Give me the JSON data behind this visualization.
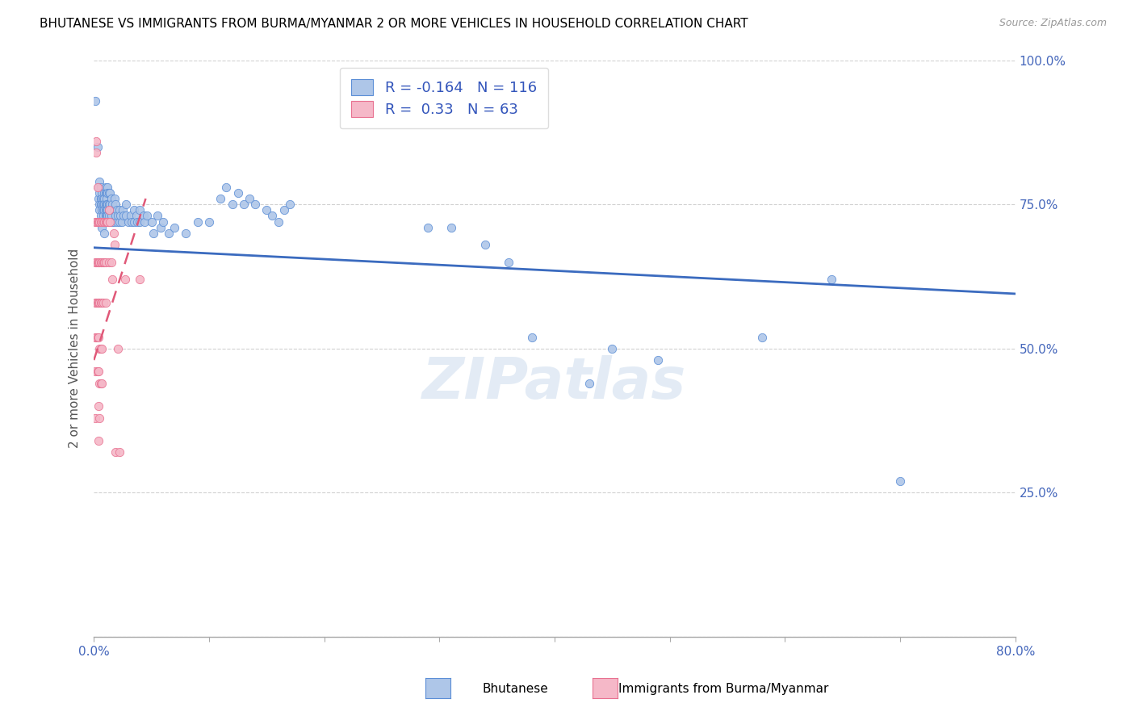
{
  "title": "BHUTANESE VS IMMIGRANTS FROM BURMA/MYANMAR 2 OR MORE VEHICLES IN HOUSEHOLD CORRELATION CHART",
  "source": "Source: ZipAtlas.com",
  "ylabel": "2 or more Vehicles in Household",
  "xlim": [
    0,
    0.8
  ],
  "ylim": [
    0,
    1.0
  ],
  "yticks": [
    0.0,
    0.25,
    0.5,
    0.75,
    1.0
  ],
  "yticklabels_right": [
    "",
    "25.0%",
    "50.0%",
    "75.0%",
    "100.0%"
  ],
  "xtick_vals": [
    0.0,
    0.1,
    0.2,
    0.3,
    0.4,
    0.5,
    0.6,
    0.7,
    0.8
  ],
  "xticklabels": [
    "0.0%",
    "",
    "",
    "",
    "",
    "",
    "",
    "",
    "80.0%"
  ],
  "blue_R": -0.164,
  "blue_N": 116,
  "pink_R": 0.33,
  "pink_N": 63,
  "blue_color": "#aec6e8",
  "blue_edge_color": "#5b8ed6",
  "blue_line_color": "#3b6bbf",
  "pink_color": "#f5b8c8",
  "pink_edge_color": "#e87090",
  "pink_line_color": "#e05878",
  "watermark": "ZIPatlas",
  "legend_label_blue": "Bhutanese",
  "legend_label_pink": "Immigrants from Burma/Myanmar",
  "blue_line_x0": 0.0,
  "blue_line_y0": 0.675,
  "blue_line_x1": 0.8,
  "blue_line_y1": 0.595,
  "pink_line_x0": 0.0,
  "pink_line_y0": 0.48,
  "pink_line_x1": 0.045,
  "pink_line_y1": 0.76,
  "blue_scatter": [
    [
      0.001,
      0.93
    ],
    [
      0.003,
      0.85
    ],
    [
      0.004,
      0.78
    ],
    [
      0.004,
      0.76
    ],
    [
      0.005,
      0.79
    ],
    [
      0.005,
      0.77
    ],
    [
      0.005,
      0.75
    ],
    [
      0.005,
      0.74
    ],
    [
      0.006,
      0.78
    ],
    [
      0.006,
      0.76
    ],
    [
      0.006,
      0.75
    ],
    [
      0.006,
      0.73
    ],
    [
      0.006,
      0.72
    ],
    [
      0.007,
      0.77
    ],
    [
      0.007,
      0.76
    ],
    [
      0.007,
      0.75
    ],
    [
      0.007,
      0.74
    ],
    [
      0.007,
      0.72
    ],
    [
      0.007,
      0.71
    ],
    [
      0.008,
      0.76
    ],
    [
      0.008,
      0.75
    ],
    [
      0.008,
      0.74
    ],
    [
      0.008,
      0.73
    ],
    [
      0.009,
      0.77
    ],
    [
      0.009,
      0.76
    ],
    [
      0.009,
      0.75
    ],
    [
      0.009,
      0.74
    ],
    [
      0.009,
      0.72
    ],
    [
      0.009,
      0.7
    ],
    [
      0.01,
      0.78
    ],
    [
      0.01,
      0.77
    ],
    [
      0.01,
      0.75
    ],
    [
      0.01,
      0.74
    ],
    [
      0.01,
      0.73
    ],
    [
      0.011,
      0.77
    ],
    [
      0.011,
      0.76
    ],
    [
      0.011,
      0.75
    ],
    [
      0.011,
      0.74
    ],
    [
      0.011,
      0.73
    ],
    [
      0.012,
      0.78
    ],
    [
      0.012,
      0.77
    ],
    [
      0.012,
      0.75
    ],
    [
      0.012,
      0.74
    ],
    [
      0.012,
      0.73
    ],
    [
      0.013,
      0.77
    ],
    [
      0.013,
      0.75
    ],
    [
      0.013,
      0.74
    ],
    [
      0.013,
      0.73
    ],
    [
      0.013,
      0.72
    ],
    [
      0.014,
      0.77
    ],
    [
      0.014,
      0.75
    ],
    [
      0.014,
      0.74
    ],
    [
      0.015,
      0.76
    ],
    [
      0.015,
      0.74
    ],
    [
      0.015,
      0.73
    ],
    [
      0.016,
      0.75
    ],
    [
      0.016,
      0.72
    ],
    [
      0.017,
      0.74
    ],
    [
      0.017,
      0.72
    ],
    [
      0.018,
      0.76
    ],
    [
      0.018,
      0.74
    ],
    [
      0.019,
      0.75
    ],
    [
      0.019,
      0.73
    ],
    [
      0.02,
      0.74
    ],
    [
      0.02,
      0.72
    ],
    [
      0.021,
      0.73
    ],
    [
      0.022,
      0.74
    ],
    [
      0.022,
      0.72
    ],
    [
      0.023,
      0.73
    ],
    [
      0.024,
      0.72
    ],
    [
      0.025,
      0.74
    ],
    [
      0.026,
      0.73
    ],
    [
      0.028,
      0.75
    ],
    [
      0.028,
      0.73
    ],
    [
      0.03,
      0.72
    ],
    [
      0.032,
      0.73
    ],
    [
      0.033,
      0.72
    ],
    [
      0.035,
      0.74
    ],
    [
      0.035,
      0.72
    ],
    [
      0.037,
      0.73
    ],
    [
      0.038,
      0.72
    ],
    [
      0.04,
      0.74
    ],
    [
      0.04,
      0.72
    ],
    [
      0.043,
      0.73
    ],
    [
      0.044,
      0.72
    ],
    [
      0.046,
      0.73
    ],
    [
      0.05,
      0.72
    ],
    [
      0.052,
      0.7
    ],
    [
      0.055,
      0.73
    ],
    [
      0.058,
      0.71
    ],
    [
      0.06,
      0.72
    ],
    [
      0.065,
      0.7
    ],
    [
      0.07,
      0.71
    ],
    [
      0.08,
      0.7
    ],
    [
      0.09,
      0.72
    ],
    [
      0.1,
      0.72
    ],
    [
      0.11,
      0.76
    ],
    [
      0.115,
      0.78
    ],
    [
      0.12,
      0.75
    ],
    [
      0.125,
      0.77
    ],
    [
      0.13,
      0.75
    ],
    [
      0.135,
      0.76
    ],
    [
      0.14,
      0.75
    ],
    [
      0.15,
      0.74
    ],
    [
      0.155,
      0.73
    ],
    [
      0.16,
      0.72
    ],
    [
      0.165,
      0.74
    ],
    [
      0.17,
      0.75
    ],
    [
      0.29,
      0.71
    ],
    [
      0.31,
      0.71
    ],
    [
      0.34,
      0.68
    ],
    [
      0.36,
      0.65
    ],
    [
      0.38,
      0.52
    ],
    [
      0.43,
      0.44
    ],
    [
      0.45,
      0.5
    ],
    [
      0.49,
      0.48
    ],
    [
      0.58,
      0.52
    ],
    [
      0.64,
      0.62
    ],
    [
      0.7,
      0.27
    ]
  ],
  "pink_scatter": [
    [
      0.001,
      0.72
    ],
    [
      0.001,
      0.65
    ],
    [
      0.001,
      0.58
    ],
    [
      0.001,
      0.52
    ],
    [
      0.001,
      0.46
    ],
    [
      0.001,
      0.38
    ],
    [
      0.002,
      0.86
    ],
    [
      0.002,
      0.84
    ],
    [
      0.002,
      0.72
    ],
    [
      0.002,
      0.65
    ],
    [
      0.002,
      0.58
    ],
    [
      0.002,
      0.52
    ],
    [
      0.003,
      0.78
    ],
    [
      0.003,
      0.72
    ],
    [
      0.003,
      0.65
    ],
    [
      0.003,
      0.58
    ],
    [
      0.003,
      0.52
    ],
    [
      0.003,
      0.46
    ],
    [
      0.004,
      0.72
    ],
    [
      0.004,
      0.65
    ],
    [
      0.004,
      0.58
    ],
    [
      0.004,
      0.52
    ],
    [
      0.004,
      0.46
    ],
    [
      0.004,
      0.4
    ],
    [
      0.004,
      0.34
    ],
    [
      0.005,
      0.72
    ],
    [
      0.005,
      0.65
    ],
    [
      0.005,
      0.58
    ],
    [
      0.005,
      0.5
    ],
    [
      0.005,
      0.44
    ],
    [
      0.005,
      0.38
    ],
    [
      0.006,
      0.72
    ],
    [
      0.006,
      0.65
    ],
    [
      0.006,
      0.58
    ],
    [
      0.006,
      0.5
    ],
    [
      0.006,
      0.44
    ],
    [
      0.007,
      0.72
    ],
    [
      0.007,
      0.65
    ],
    [
      0.007,
      0.58
    ],
    [
      0.007,
      0.5
    ],
    [
      0.007,
      0.44
    ],
    [
      0.008,
      0.72
    ],
    [
      0.008,
      0.65
    ],
    [
      0.008,
      0.58
    ],
    [
      0.009,
      0.72
    ],
    [
      0.009,
      0.65
    ],
    [
      0.01,
      0.72
    ],
    [
      0.01,
      0.65
    ],
    [
      0.01,
      0.58
    ],
    [
      0.011,
      0.72
    ],
    [
      0.012,
      0.72
    ],
    [
      0.013,
      0.65
    ],
    [
      0.013,
      0.74
    ],
    [
      0.014,
      0.72
    ],
    [
      0.015,
      0.65
    ],
    [
      0.016,
      0.62
    ],
    [
      0.017,
      0.7
    ],
    [
      0.018,
      0.68
    ],
    [
      0.019,
      0.32
    ],
    [
      0.021,
      0.5
    ],
    [
      0.022,
      0.32
    ],
    [
      0.027,
      0.62
    ],
    [
      0.04,
      0.62
    ]
  ]
}
